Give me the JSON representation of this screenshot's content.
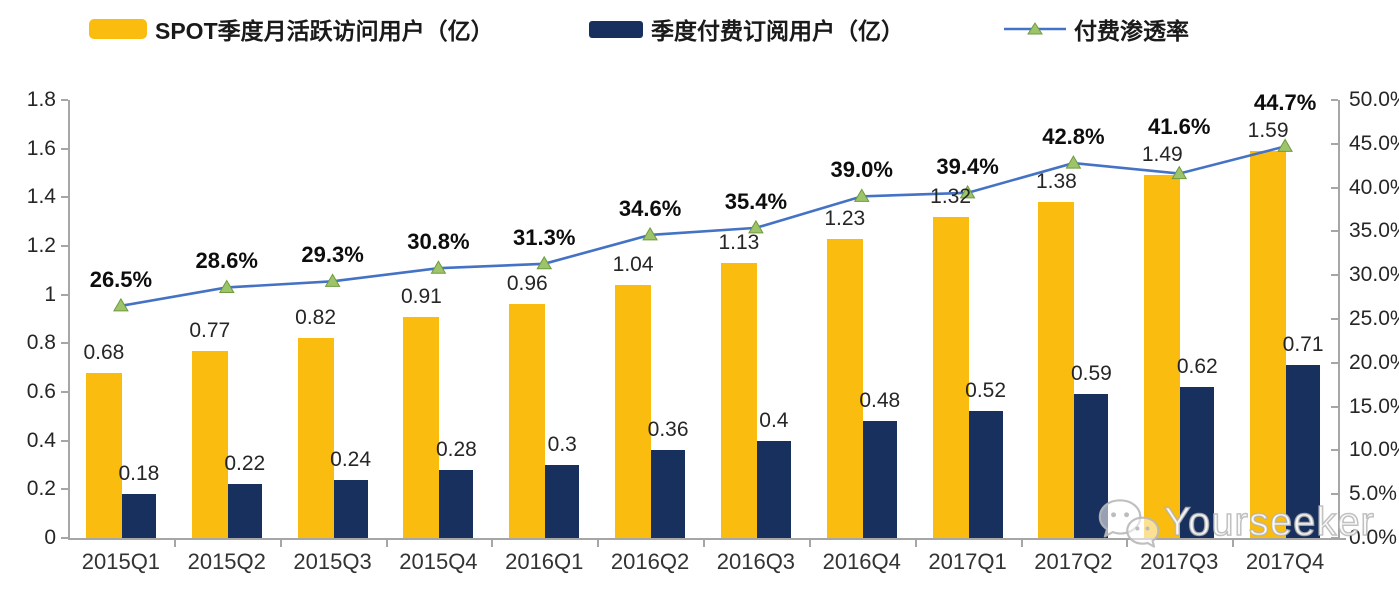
{
  "legend": {
    "items": [
      {
        "label": "SPOT季度月活跃访问用户（亿）"
      },
      {
        "label": "季度付费订阅用户（亿）"
      },
      {
        "label": "付费渗透率"
      }
    ]
  },
  "colors": {
    "mau_bar": "#FBBC10",
    "subs_bar": "#17305E",
    "line": "#4472C4",
    "marker_fill": "#9DC36B",
    "marker_stroke": "#6E9B3D",
    "axis": "#A6A6A6"
  },
  "chart_data": {
    "type": "bar",
    "subtype": "grouped-bars-with-line",
    "title": "",
    "grid": false,
    "legend_position": "top",
    "categories": [
      "2015Q1",
      "2015Q2",
      "2015Q3",
      "2015Q4",
      "2016Q1",
      "2016Q2",
      "2016Q3",
      "2016Q4",
      "2017Q1",
      "2017Q2",
      "2017Q3",
      "2017Q4"
    ],
    "series": [
      {
        "name": "SPOT季度月活跃访问用户（亿）",
        "type": "bar",
        "axis": "left",
        "color": "#FBBC10",
        "values": [
          0.68,
          0.77,
          0.82,
          0.91,
          0.96,
          1.04,
          1.13,
          1.23,
          1.32,
          1.38,
          1.49,
          1.59
        ],
        "data_labels": [
          "0.68",
          "0.77",
          "0.82",
          "0.91",
          "0.96",
          "1.04",
          "1.13",
          "1.23",
          "1.32",
          "1.38",
          "1.49",
          "1.59"
        ]
      },
      {
        "name": "季度付费订阅用户（亿）",
        "type": "bar",
        "axis": "left",
        "color": "#17305E",
        "values": [
          0.18,
          0.22,
          0.24,
          0.28,
          0.3,
          0.36,
          0.4,
          0.48,
          0.52,
          0.59,
          0.62,
          0.71
        ],
        "data_labels": [
          "0.18",
          "0.22",
          "0.24",
          "0.28",
          "0.3",
          "0.36",
          "0.4",
          "0.48",
          "0.52",
          "0.59",
          "0.62",
          "0.71"
        ]
      },
      {
        "name": "付费渗透率",
        "type": "line",
        "axis": "right",
        "color": "#4472C4",
        "marker": "triangle",
        "values": [
          26.5,
          28.6,
          29.3,
          30.8,
          31.3,
          34.6,
          35.4,
          39.0,
          39.4,
          42.8,
          41.6,
          44.7
        ],
        "data_labels": [
          "26.5%",
          "28.6%",
          "29.3%",
          "30.8%",
          "31.3%",
          "34.6%",
          "35.4%",
          "39.0%",
          "39.4%",
          "42.8%",
          "41.6%",
          "44.7%"
        ]
      }
    ],
    "left_axis": {
      "min": 0,
      "max": 1.8,
      "tick_labels": [
        "0",
        "0.2",
        "0.4",
        "0.6",
        "0.8",
        "1",
        "1.2",
        "1.4",
        "1.6",
        "1.8"
      ]
    },
    "right_axis": {
      "min": 0,
      "max": 50,
      "tick_labels": [
        "0.0%",
        "5.0%",
        "10.0%",
        "15.0%",
        "20.0%",
        "25.0%",
        "30.0%",
        "35.0%",
        "40.0%",
        "45.0%",
        "50.0%"
      ]
    }
  },
  "watermark": {
    "text": "Yourseeker",
    "icon": "wechat-icon"
  }
}
